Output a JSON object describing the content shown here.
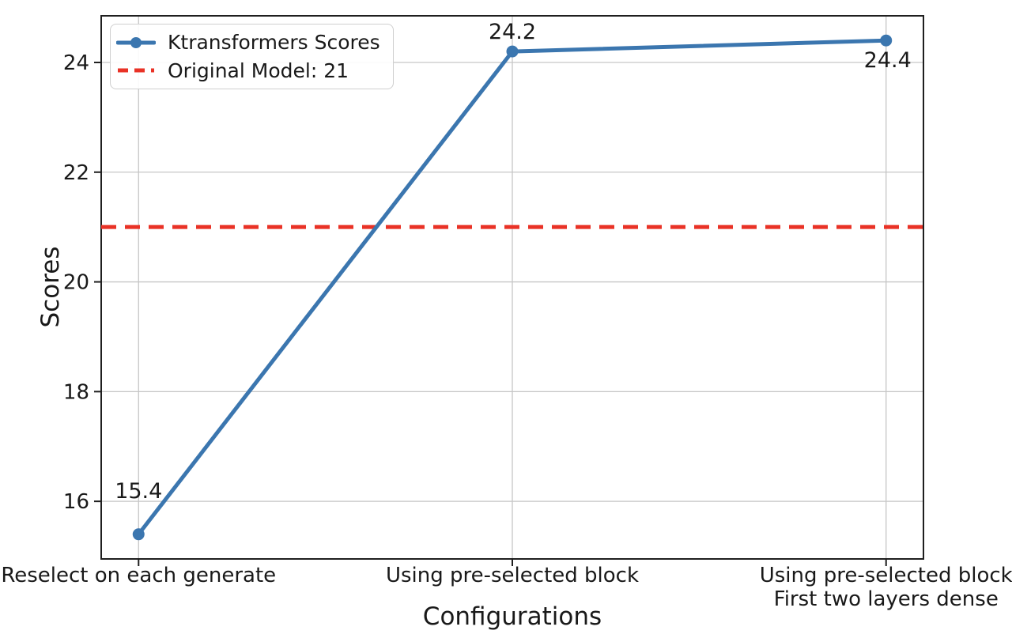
{
  "figure": {
    "background": "#ffffff"
  },
  "chart_data": {
    "type": "line",
    "title": "",
    "xlabel": "Configurations",
    "ylabel": "Scores",
    "categories": [
      "Reselect on each generate",
      "Using pre-selected block",
      "Using pre-selected block\nFirst two layers dense"
    ],
    "series": [
      {
        "name": "Ktransformers Scores",
        "values": [
          15.4,
          24.2,
          24.4
        ],
        "color": "#3b76af",
        "marker": "circle",
        "line_style": "solid"
      }
    ],
    "reference_line": {
      "label": "Original Model: 21",
      "value": 21,
      "color": "#e93226",
      "line_style": "dashed"
    },
    "data_labels": [
      "15.4",
      "24.2",
      "24.4"
    ],
    "yticks": [
      16,
      18,
      20,
      22,
      24
    ],
    "ylim": [
      14.95,
      24.85
    ],
    "xlim": [
      -0.1,
      2.1
    ],
    "grid": true,
    "legend_position": "upper-left",
    "colors": {
      "grid": "#c6c6c6",
      "spine": "#1f1f1f",
      "text": "#191919"
    }
  }
}
